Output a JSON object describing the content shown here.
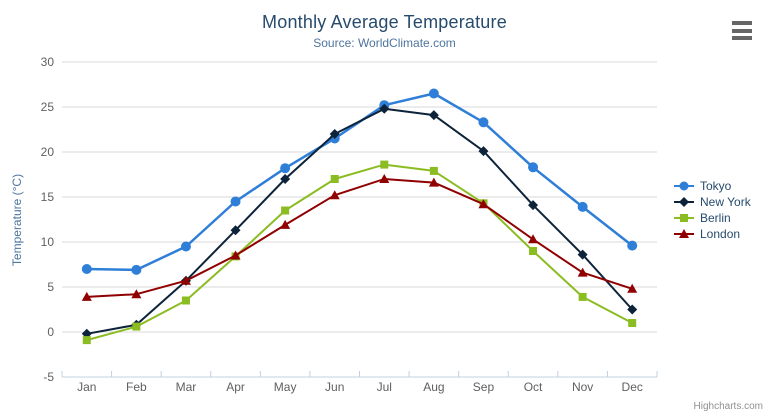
{
  "chart_data": {
    "type": "line",
    "title": "Monthly Average Temperature",
    "subtitle": "Source: WorldClimate.com",
    "categories": [
      "Jan",
      "Feb",
      "Mar",
      "Apr",
      "May",
      "Jun",
      "Jul",
      "Aug",
      "Sep",
      "Oct",
      "Nov",
      "Dec"
    ],
    "series": [
      {
        "name": "Tokyo",
        "color": "#2f7ed8",
        "marker": "circle",
        "line_width": 2.5,
        "values": [
          7.0,
          6.9,
          9.5,
          14.5,
          18.2,
          21.5,
          25.2,
          26.5,
          23.3,
          18.3,
          13.9,
          9.6
        ]
      },
      {
        "name": "New York",
        "color": "#0d233a",
        "marker": "diamond",
        "line_width": 2,
        "values": [
          -0.2,
          0.8,
          5.7,
          11.3,
          17.0,
          22.0,
          24.8,
          24.1,
          20.1,
          14.1,
          8.6,
          2.5
        ]
      },
      {
        "name": "Berlin",
        "color": "#8bbc21",
        "marker": "square",
        "line_width": 2,
        "values": [
          -0.9,
          0.6,
          3.5,
          8.4,
          13.5,
          17.0,
          18.6,
          17.9,
          14.3,
          9.0,
          3.9,
          1.0
        ]
      },
      {
        "name": "London",
        "color": "#910000",
        "marker": "triangle",
        "line_width": 2,
        "values": [
          3.9,
          4.2,
          5.7,
          8.5,
          11.9,
          15.2,
          17.0,
          16.6,
          14.2,
          10.3,
          6.6,
          4.8
        ]
      }
    ],
    "xlabel": "",
    "ylabel": "Temperature (°C)",
    "ylim": [
      -5,
      30
    ],
    "yticks": [
      -5,
      0,
      5,
      10,
      15,
      20,
      25,
      30
    ],
    "grid": true,
    "legend_position": "right",
    "colors": {
      "grid_line": "#d8d8d8",
      "axis_line": "#c0d0e0",
      "axis_label": "#606060",
      "title": "#274b6d",
      "subtitle": "#4d759e",
      "legend_text": "#274b6d",
      "credits_text": "#909090",
      "menu_icon": "#666666"
    }
  },
  "toolbar": {
    "context_menu_icon": "hamburger-menu"
  },
  "credits": {
    "text": "Highcharts.com"
  }
}
